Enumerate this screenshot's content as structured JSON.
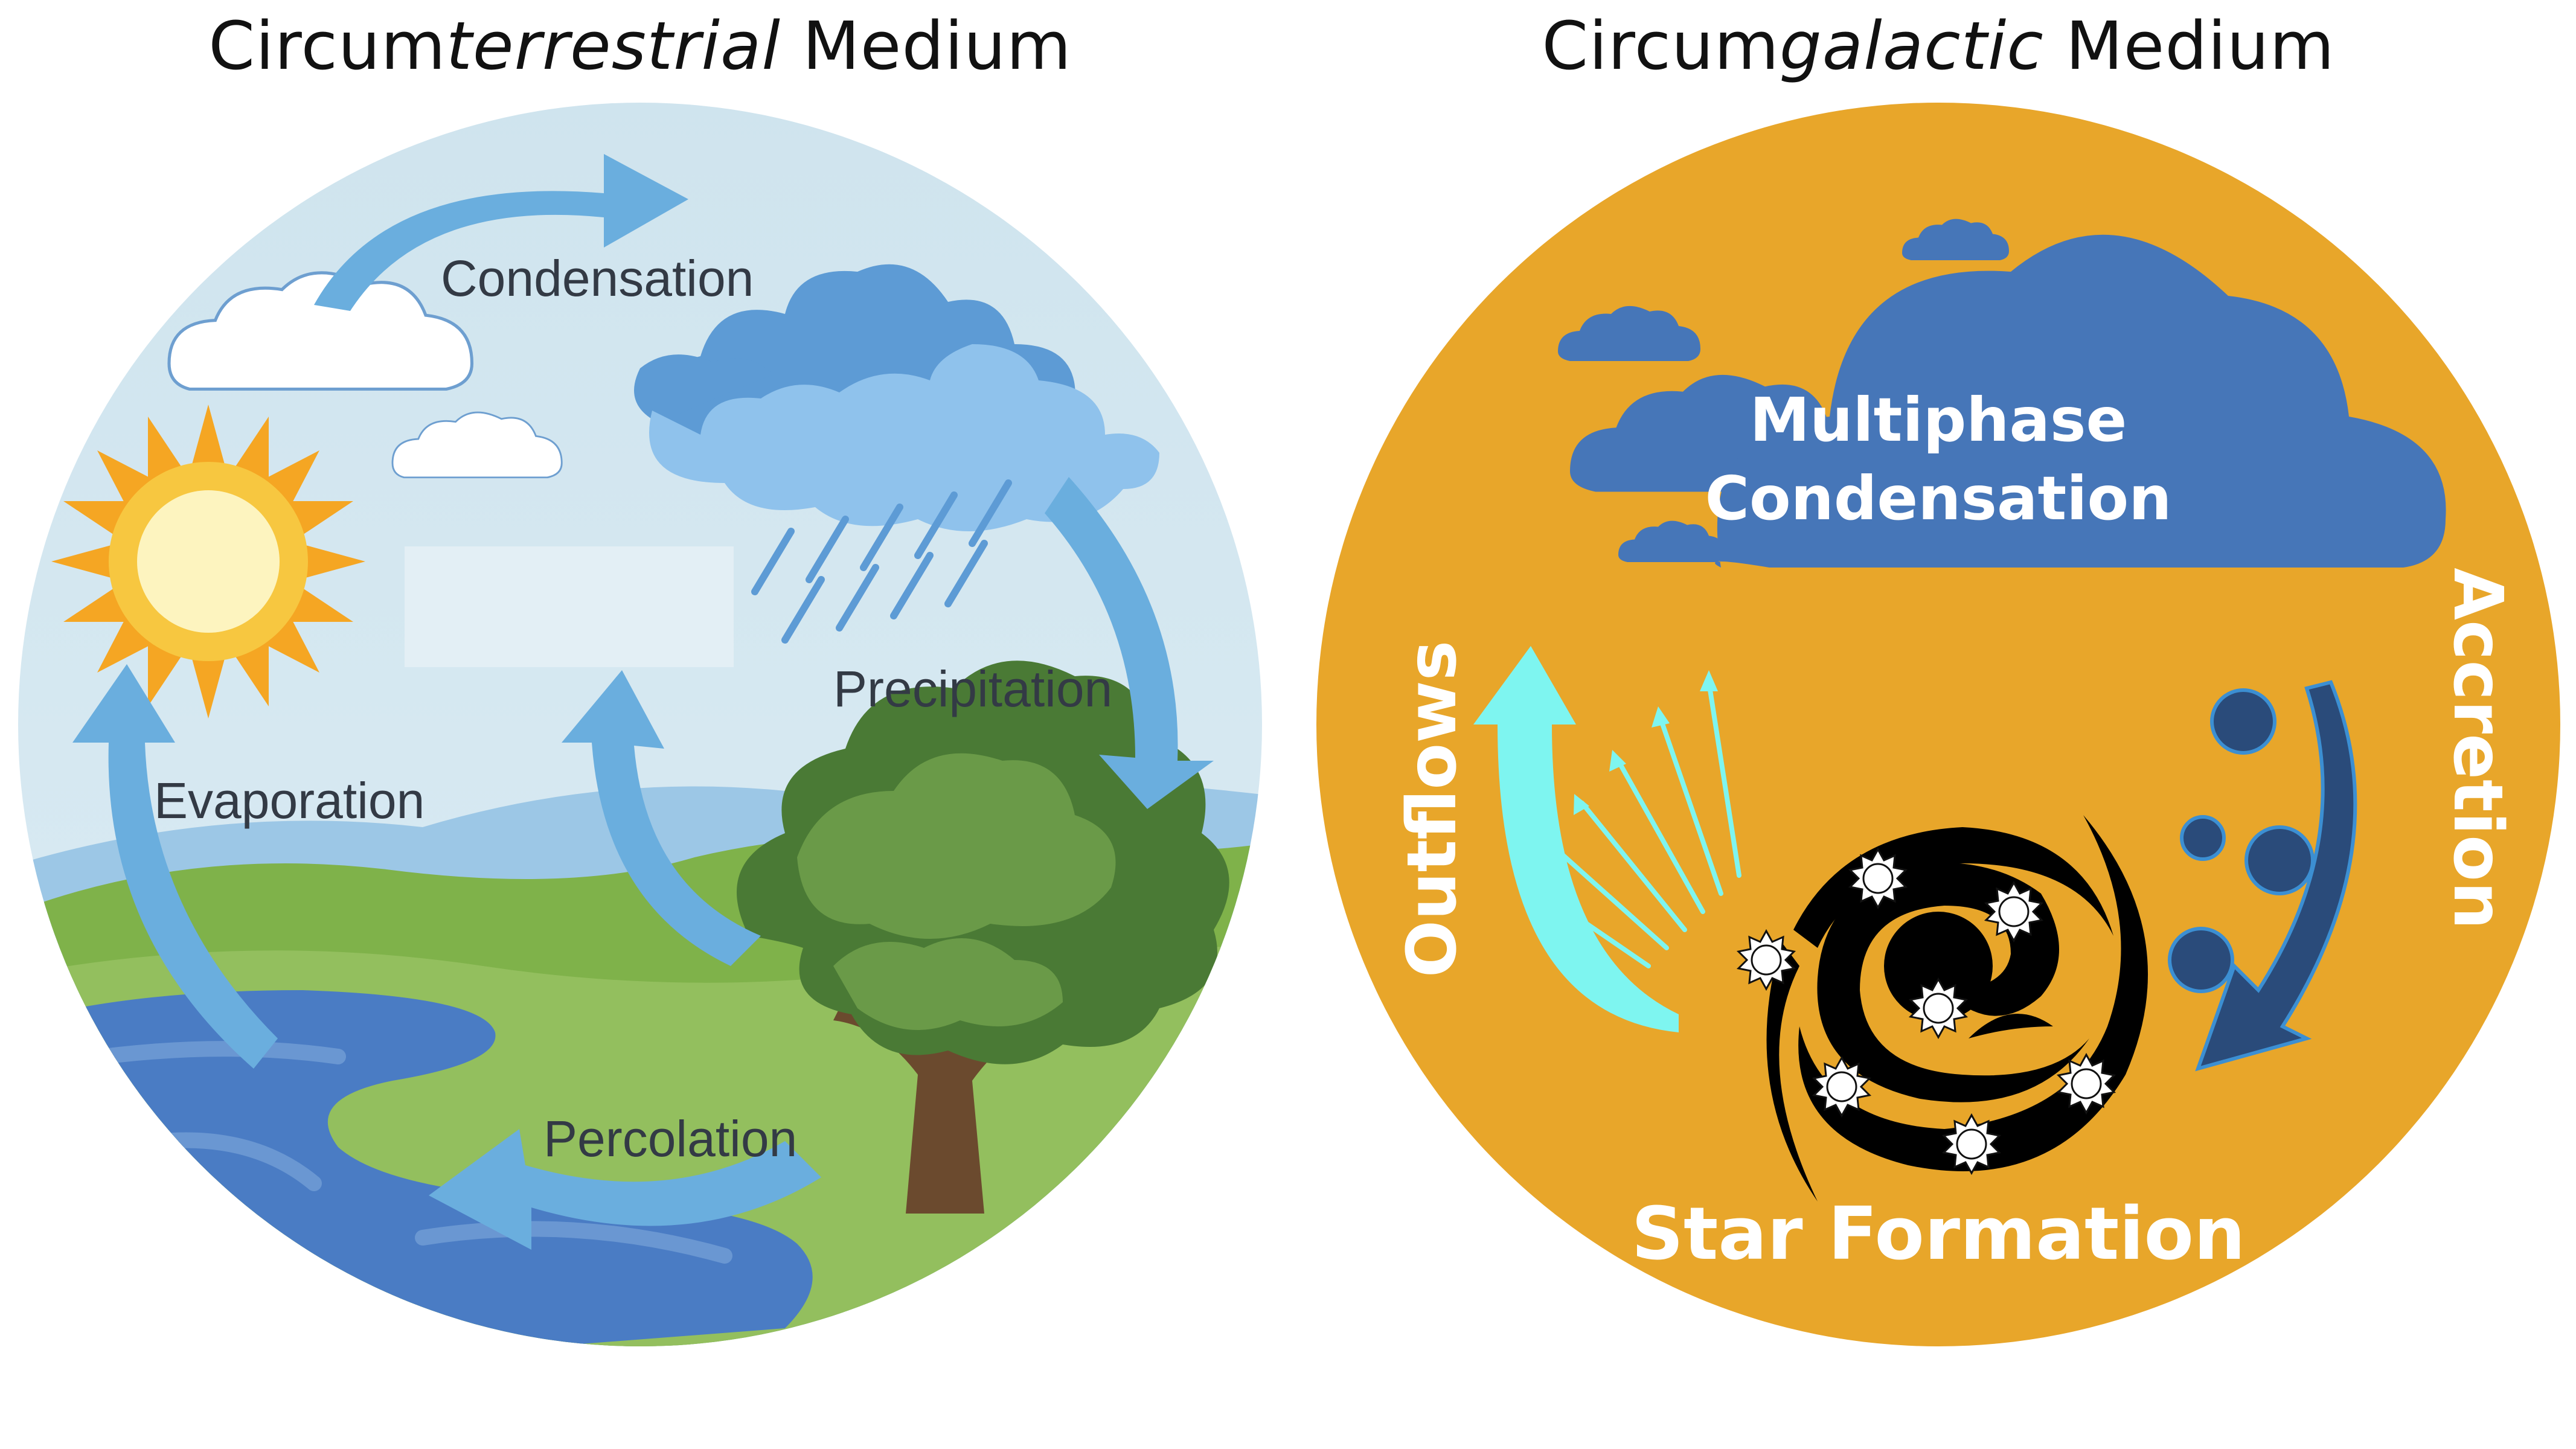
{
  "titles": {
    "left": {
      "prefix": "Circum",
      "emphasis": "terrestrial",
      "suffix": " Medium"
    },
    "right": {
      "prefix": "Circum",
      "emphasis": "galactic",
      "suffix": " Medium"
    }
  },
  "left_labels": {
    "condensation": "Condensation",
    "precipitation": "Precipitation",
    "evaporation": "Evaporation",
    "percolation": "Percolation"
  },
  "right_labels": {
    "condensation_line1": "Multiphase",
    "condensation_line2": "Condensation",
    "outflows": "Outflows",
    "accretion": "Accretion",
    "star_formation": "Star Formation"
  },
  "icons": [
    "sun-icon",
    "cloud-icon",
    "rain-icon",
    "tree-icon",
    "river-icon",
    "galaxy-icon",
    "star-icon",
    "gas-clump-icon",
    "arrow-icon"
  ],
  "colors": {
    "sky": "#d3e7f0",
    "water_arrow": "#6aaede",
    "rain_cloud": "#5d9bd5",
    "galactic_bg": "#e8a62a",
    "galactic_cloud": "#4676b8",
    "outflow": "#7ef5f0",
    "accretion": "#2a4b7a"
  }
}
